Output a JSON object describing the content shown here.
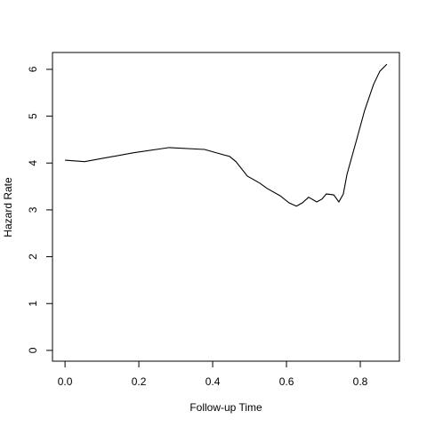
{
  "chart_data": {
    "type": "line",
    "xlabel": "Follow-up Time",
    "ylabel": "Hazard Rate",
    "x": [
      0,
      0.053,
      0.186,
      0.282,
      0.378,
      0.446,
      0.463,
      0.494,
      0.528,
      0.547,
      0.583,
      0.607,
      0.627,
      0.643,
      0.66,
      0.682,
      0.696,
      0.708,
      0.728,
      0.742,
      0.754,
      0.764,
      0.788,
      0.812,
      0.836,
      0.853,
      0.872
    ],
    "series": [
      {
        "color": "#000000",
        "values": [
          4.06,
          4.03,
          4.22,
          4.33,
          4.29,
          4.14,
          4.03,
          3.72,
          3.57,
          3.46,
          3.3,
          3.15,
          3.08,
          3.15,
          3.27,
          3.17,
          3.23,
          3.34,
          3.32,
          3.17,
          3.34,
          3.76,
          4.44,
          5.13,
          5.68,
          5.96,
          6.11
        ]
      }
    ],
    "xlim": [
      -0.034,
      0.906
    ],
    "ylim": [
      -0.23,
      6.36
    ],
    "xticks": [
      {
        "value": 0,
        "label": "0.0"
      },
      0.2,
      0.4,
      0.6,
      0.8
    ],
    "yticks": [
      0,
      1,
      2,
      3,
      4,
      5,
      6
    ]
  }
}
